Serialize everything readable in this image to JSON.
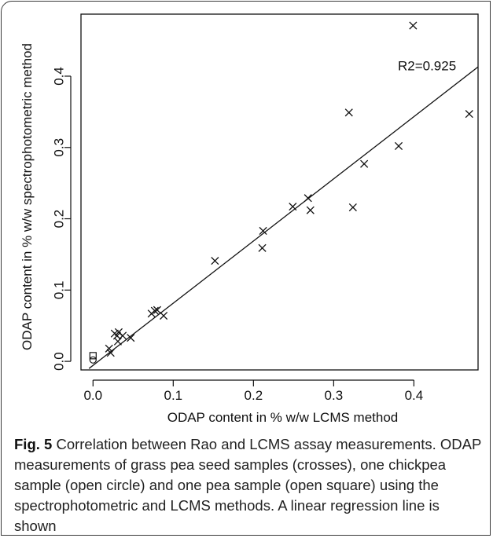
{
  "chart_data": {
    "type": "scatter",
    "xlabel": "ODAP content in % w/w LCMS method",
    "ylabel": "ODAP content in % w/w spectrophotometric method",
    "xlim": [
      -0.015,
      0.48
    ],
    "ylim": [
      -0.012,
      0.487
    ],
    "x_ticks": [
      "0.0",
      "0.1",
      "0.2",
      "0.3",
      "0.4"
    ],
    "y_ticks": [
      "0.0",
      "0.1",
      "0.2",
      "0.3",
      "0.4"
    ],
    "grid": false,
    "series": [
      {
        "marker": "cross",
        "points": [
          [
            0.02,
            0.018
          ],
          [
            0.022,
            0.012
          ],
          [
            0.027,
            0.039
          ],
          [
            0.03,
            0.036
          ],
          [
            0.031,
            0.028
          ],
          [
            0.032,
            0.041
          ],
          [
            0.037,
            0.036
          ],
          [
            0.047,
            0.033
          ],
          [
            0.073,
            0.067
          ],
          [
            0.077,
            0.071
          ],
          [
            0.08,
            0.072
          ],
          [
            0.088,
            0.064
          ],
          [
            0.152,
            0.141
          ],
          [
            0.211,
            0.159
          ],
          [
            0.212,
            0.183
          ],
          [
            0.249,
            0.217
          ],
          [
            0.268,
            0.229
          ],
          [
            0.271,
            0.212
          ],
          [
            0.319,
            0.349
          ],
          [
            0.324,
            0.216
          ],
          [
            0.338,
            0.277
          ],
          [
            0.381,
            0.302
          ],
          [
            0.399,
            0.471
          ],
          [
            0.469,
            0.347
          ]
        ]
      },
      {
        "marker": "open-circle",
        "points": [
          [
            0.0,
            0.002
          ]
        ]
      },
      {
        "marker": "open-square",
        "points": [
          [
            0.0,
            0.008
          ]
        ]
      }
    ],
    "regression_line": {
      "x": [
        -0.005,
        0.48
      ],
      "y": [
        -0.01,
        0.413
      ]
    },
    "annotations": [
      {
        "text": "R2=0.925",
        "x": 0.38,
        "y": 0.408
      }
    ]
  },
  "caption": {
    "label": "Fig. 5",
    "text": " Correlation between Rao and LCMS assay measurements. ODAP measurements of grass pea seed samples (crosses), one chickpea sample (open circle) and one pea sample (open square) using the spectrophotometric and LCMS methods. A linear regression line is shown"
  }
}
